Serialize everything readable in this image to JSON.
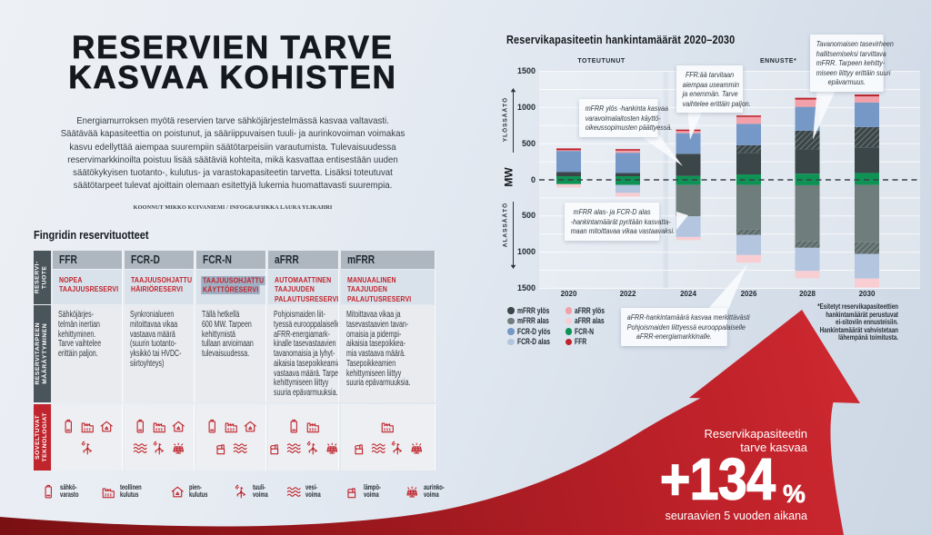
{
  "colors": {
    "red": "#c0232b",
    "ffr": "#c0232b",
    "afrr_up": "#f2a0aa",
    "afrr_down": "#f9ced3",
    "fcrd_up": "#7598c7",
    "fcrd_down": "#b4c6df",
    "fcrn": "#0e9355",
    "mfrr_up": "#3b4649",
    "mfrr_down": "#6f7d7d",
    "table_header_bg": "#aeb7c0",
    "subtitle_bg": "#d9e1ea",
    "desc_bg": "#e9ebee",
    "icons_bg": "#edeff2",
    "dark_label_bg": "#49545b",
    "red_label_bg": "#c0242c",
    "highlight_chip": "#9db0c4"
  },
  "header": {
    "title": "RESERVIEN TARVE\nKASVAA KOHISTEN",
    "intro": "Energiamurroksen myötä reservien tarve sähköjärjestelmässä kasvaa valtavasti.\nSäätävää kapasiteettia on poistunut, ja sääriippuvaisen tuuli- ja aurinkovoiman voimakas\nkasvu edellyttää aiempaa suurempiin säätötarpeisiin varautumista. Tulevaisuudessa\nreservimarkkinoilta poistuu lisää säätäviä kohteita, mikä kasvattaa entisestään uuden\nsäätökykyisen tuotanto-, kulutus- ja varastokapasiteetin tarvetta. Lisäksi toteutuvat\nsäätötarpeet tulevat ajoittain olemaan esitettyjä lukemia huomattavasti suurempia.",
    "credit": "KOONNUT MIKKO KUIVANIEMI / INFOGRAFIIKKA LAURA YLIKAHRI"
  },
  "table": {
    "heading": "Fingridin reservituotteet",
    "row_labels": [
      "RESERVI-\nTUOTE",
      "RESERVITARPEEN\nMÄÄRÄYTYMINEN",
      "SOVELTUVAT\nTEKNOLOGIAT"
    ],
    "columns": [
      {
        "name": "FFR",
        "subtitle": "NOPEA\nTAAJUUSRESERVI",
        "subtitle_highlight": false,
        "description": "Sähköjärjes-\ntelmän inertian\nkehittyminen.\nTarve vaihtelee\nerittäin paljon.",
        "tech_row1": [
          "battery",
          "factory",
          "house"
        ],
        "tech_row2": [
          "wind"
        ]
      },
      {
        "name": "FCR-D",
        "subtitle": "TAAJUUSOHJATTU\nHÄIRIÖRESERVI",
        "subtitle_highlight": false,
        "description": "Synkronialueen\nmitoittavaa vikaa\nvastaava määrä\n(suurin tuotanto-\nyksikkö tai HVDC-\nsiirtoyhteys)",
        "tech_row1": [
          "battery",
          "factory",
          "house"
        ],
        "tech_row2": [
          "waves",
          "wind",
          "solar"
        ]
      },
      {
        "name": "FCR-N",
        "subtitle": "TAAJUUSOHJATTU\nKÄYTTÖRESERVI",
        "subtitle_highlight": true,
        "description": "Tällä hetkellä\n600 MW. Tarpeen\nkehittymistä\ntullaan arvioimaan\ntulevaisuudessa.",
        "tech_row1": [
          "battery",
          "factory",
          "house"
        ],
        "tech_row2": [
          "thermal",
          "waves"
        ]
      },
      {
        "name": "aFRR",
        "subtitle": "AUTOMAATTINEN\nTAAJUUDEN\nPALAUTUSRESERVI",
        "subtitle_highlight": false,
        "description": "Pohjoismaiden liit-\ntyessä eurooppalaiselle\naFRR-energiamark-\nkinalle tasevastaavien\ntavanomaisia ja lyhyt-\naikaisia tasepoikkeamia\nvastaava määrä. Tarpeen\nkehittymiseen liittyy\nsuuria epävarmuuksia.",
        "tech_row1": [
          "battery",
          "factory"
        ],
        "tech_row2": [
          "thermal",
          "waves",
          "wind",
          "solar"
        ]
      },
      {
        "name": "mFRR",
        "subtitle": "MANUAALINEN\nTAAJUUDEN\nPALAUTUSRESERVI",
        "subtitle_highlight": false,
        "description": "Mitoittavaa vikaa ja\ntasevastaavien tavan-\nomaisia ja pidempi-\naikaisia tasepoikkea-\nmia vastaava määrä.\nTasepoikkeamien\nkehittymiseen liittyy\nsuuria epävarmuuksia.",
        "tech_row1": [
          "factory"
        ],
        "tech_row2": [
          "thermal",
          "waves",
          "wind",
          "solar"
        ]
      }
    ]
  },
  "tech_legend": [
    {
      "icon": "battery",
      "label": "sähkö-\nvarasto"
    },
    {
      "icon": "factory",
      "label": "teollinen\nkulutus"
    },
    {
      "icon": "house",
      "label": "pien-\nkulutus"
    },
    {
      "icon": "wind",
      "label": "tuuli-\nvoima"
    },
    {
      "icon": "waves",
      "label": "vesi-\nvoima"
    },
    {
      "icon": "thermal",
      "label": "lämpö-\nvoima"
    },
    {
      "icon": "solar",
      "label": "aurinko-\nvoima"
    }
  ],
  "chart_data": {
    "type": "bar",
    "title": "Reservikapasiteetin hankintamäärät 2020–2030",
    "ylabel": "MW",
    "section_labels": {
      "realized": "TOTEUTUNUT",
      "forecast": "ENNUSTE*"
    },
    "axis": {
      "up_label": "YLÖSSÄÄTÖ",
      "down_label": "ALASSÄÄTÖ",
      "tick_values": [
        1500,
        1000,
        500,
        0,
        -500,
        -1000,
        -1500
      ],
      "tick_labels": [
        "1500",
        "1000",
        "500",
        "0",
        "500",
        "1000",
        "1500"
      ],
      "grid_step": 250,
      "ylim": [
        -1500,
        1500
      ]
    },
    "categories": [
      "2020",
      "2022",
      "2024",
      "2026",
      "2028",
      "2030"
    ],
    "forecast_from_index": 2,
    "series_up": [
      {
        "name": "FCR-N",
        "color_key": "fcrn",
        "hatch": false,
        "values": [
          50,
          50,
          55,
          75,
          85,
          95
        ]
      },
      {
        "name": "mFRR ylös",
        "color_key": "mfrr_up",
        "hatch": false,
        "values": [
          60,
          45,
          305,
          300,
          335,
          355
        ]
      },
      {
        "name": "mFRR ylös epävarmuus",
        "color_key": "mfrr_up",
        "hatch": true,
        "values": [
          0,
          0,
          0,
          105,
          260,
          280
        ]
      },
      {
        "name": "FCR-D ylös",
        "color_key": "fcrd_up",
        "hatch": false,
        "values": [
          290,
          280,
          285,
          295,
          330,
          340
        ]
      },
      {
        "name": "aFRR ylös",
        "color_key": "afrr_up",
        "hatch": false,
        "values": [
          10,
          30,
          30,
          95,
          100,
          85
        ]
      },
      {
        "name": "FFR",
        "color_key": "ffr",
        "hatch": false,
        "values": [
          25,
          20,
          20,
          20,
          25,
          25
        ]
      }
    ],
    "series_down": [
      {
        "name": "FCR-N",
        "color_key": "fcrn",
        "hatch": false,
        "values": [
          60,
          70,
          70,
          70,
          75,
          70
        ]
      },
      {
        "name": "mFRR alas",
        "color_key": "mfrr_down",
        "hatch": false,
        "values": [
          0,
          0,
          435,
          620,
          770,
          795
        ]
      },
      {
        "name": "mFRR alas epävarmuus",
        "color_key": "mfrr_down",
        "hatch": true,
        "values": [
          0,
          0,
          0,
          70,
          95,
          160
        ]
      },
      {
        "name": "FCR-D alas",
        "color_key": "fcrd_down",
        "hatch": false,
        "values": [
          0,
          110,
          285,
          280,
          320,
          340
        ]
      },
      {
        "name": "aFRR alas",
        "color_key": "afrr_down",
        "hatch": false,
        "values": [
          45,
          50,
          45,
          105,
          100,
          125
        ]
      }
    ],
    "legend": [
      {
        "label": "mFRR ylös",
        "color_key": "mfrr_up"
      },
      {
        "label": "mFRR alas",
        "color_key": "mfrr_down"
      },
      {
        "label": "FCR-D ylös",
        "color_key": "fcrd_up"
      },
      {
        "label": "FCR-D alas",
        "color_key": "fcrd_down"
      },
      {
        "label": "aFRR ylös",
        "color_key": "afrr_up"
      },
      {
        "label": "aFRR alas",
        "color_key": "afrr_down"
      },
      {
        "label": "FCR-N",
        "color_key": "fcrn"
      },
      {
        "label": "FFR",
        "color_key": "ffr"
      }
    ],
    "callouts": [
      {
        "text": "mFRR ylös -hankinta kasvaa\nvaravoimalaitosten käyttö-\noikeussopimusten päättyessä."
      },
      {
        "text": "FFR:ää tarvitaan\naiempaa useammin\nja enemmän. Tarve\nvaihtelee erittäin paljon."
      },
      {
        "text": "Tavanomaisen tasevirheen\nhallitsemiseksi tarvittava\nmFRR. Tarpeen kehitty-\nmiseen liittyy erittäin suuri\nepävarmuus."
      },
      {
        "text": "mFRR alas- ja FCR-D alas\n-hankintamäärät pyritään kasvatta-\nmaan mitoittavaa vikaa vastaavaksi."
      },
      {
        "text": "aFRR-hankintamäärä kasvaa merkittävästi\nPohjoismaiden liittyessä eurooppalaiselle\naFRR-energiamarkkinalle."
      }
    ],
    "footnote": "*Esitetyt reservikapasiteettien\nhankintamäärät perustuvat\nei-sitoviin ennusteisiin.\nHankintamäärät vahvistetaan\nlähempänä toimitusta."
  },
  "arrow": {
    "lead": "Reservikapasiteetin\ntarve kasvaa",
    "big": "+134",
    "pct": "%",
    "sub": "seuraavien 5 vuoden aikana"
  }
}
